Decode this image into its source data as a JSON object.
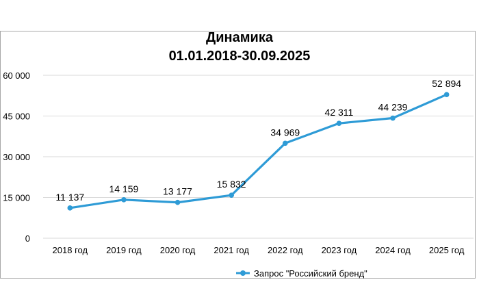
{
  "chart_data": {
    "type": "line",
    "title": "Динамика",
    "subtitle": "01.01.2018-30.09.2025",
    "categories": [
      "2018 год",
      "2019 год",
      "2020 год",
      "2021 год",
      "2022 год",
      "2023 год",
      "2024 год",
      "2025 год"
    ],
    "series": [
      {
        "name": "Запрос \"Российский бренд\"",
        "values": [
          11137,
          14159,
          13177,
          15832,
          34969,
          42311,
          44239,
          52894
        ],
        "data_labels": [
          "11 137",
          "14 159",
          "13 177",
          "15 832",
          "34 969",
          "42 311",
          "44 239",
          "52 894"
        ],
        "color": "#2e9bd6"
      }
    ],
    "ylim": [
      0,
      60000
    ],
    "yticks": [
      0,
      15000,
      30000,
      45000,
      60000
    ],
    "ytick_labels": [
      "0",
      "15 000",
      "30 000",
      "45 000",
      "60 000"
    ],
    "grid": true,
    "gridline_color": "#d9d9d9",
    "legend": "bottom"
  }
}
